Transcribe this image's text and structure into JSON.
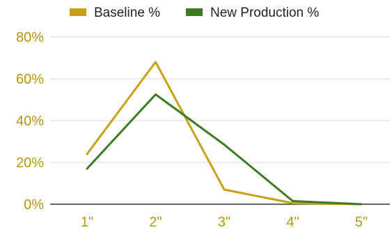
{
  "chart_data": {
    "type": "line",
    "categories": [
      "1\"",
      "2\"",
      "3\"",
      "4\"",
      "5\""
    ],
    "series": [
      {
        "name": "Baseline %",
        "values": [
          24,
          68,
          7,
          0.5,
          0
        ],
        "color": "#c9a013"
      },
      {
        "name": "New Production %",
        "values": [
          17,
          52.5,
          28.5,
          1.5,
          0
        ],
        "color": "#3f7a22"
      }
    ],
    "yticks": [
      "0%",
      "20%",
      "40%",
      "60%",
      "80%"
    ],
    "ylim": [
      0,
      80
    ],
    "grid": true,
    "legend_position": "top-center",
    "axis_color": "#b8960c",
    "grid_color": "#d9d9d9"
  }
}
